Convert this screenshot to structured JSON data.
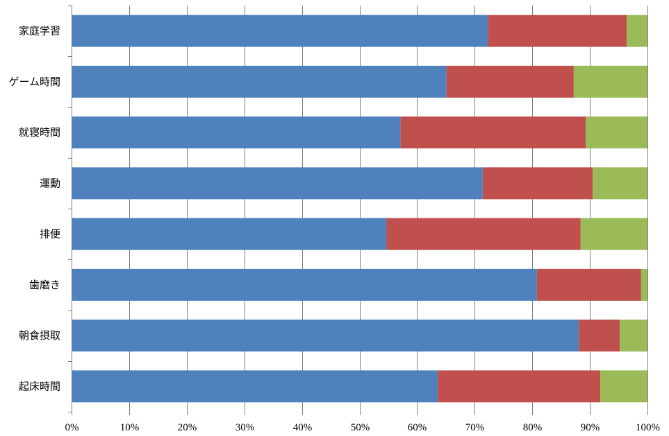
{
  "colors": {
    "series_1": "#4f81bd",
    "series_2": "#c0504d",
    "series_3": "#9bbb59",
    "gridline": "#7f7f7f",
    "background": "#ffffff"
  },
  "chart_data": {
    "type": "bar",
    "orientation": "horizontal",
    "stacked": "percent",
    "title": "",
    "xlabel": "",
    "ylabel": "",
    "xlim": [
      0,
      100
    ],
    "x_ticks": [
      "0%",
      "10%",
      "20%",
      "30%",
      "40%",
      "50%",
      "60%",
      "70%",
      "80%",
      "90%",
      "100%"
    ],
    "grid": "vertical",
    "legend": "none",
    "categories": [
      "家庭学習",
      "ゲーム時間",
      "就寝時間",
      "運動",
      "排便",
      "歯磨き",
      "朝食摂取",
      "起床時間"
    ],
    "series": [
      {
        "values": [
          72.3,
          65.1,
          57.1,
          71.4,
          54.7,
          80.8,
          88.1,
          63.6
        ]
      },
      {
        "values": [
          24.1,
          22.1,
          32.2,
          19.1,
          33.7,
          18.1,
          7.1,
          28.2
        ]
      },
      {
        "values": [
          3.6,
          12.8,
          10.7,
          9.5,
          11.6,
          1.1,
          4.8,
          8.2
        ]
      }
    ]
  }
}
